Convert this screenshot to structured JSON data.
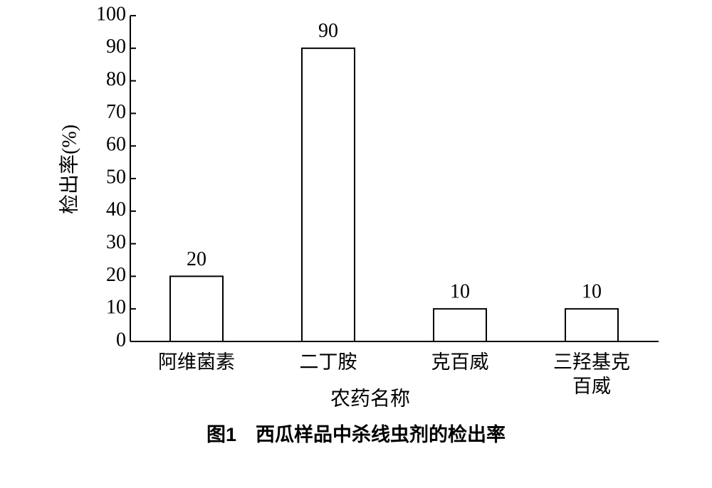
{
  "chart_data": {
    "type": "bar",
    "title": "图1　西瓜样品中杀线虫剂的检出率",
    "x_label": "农药名称",
    "y_label": "检出率(%)",
    "categories": [
      "阿维菌素",
      "二丁胺",
      "克百威",
      "三羟基克百威"
    ],
    "values": [
      20,
      90,
      10,
      10
    ],
    "color": "#ffffff",
    "ylim": [
      0,
      100
    ],
    "yticks": [
      0,
      10,
      20,
      30,
      40,
      50,
      60,
      70,
      80,
      90,
      100
    ],
    "grid": false
  }
}
